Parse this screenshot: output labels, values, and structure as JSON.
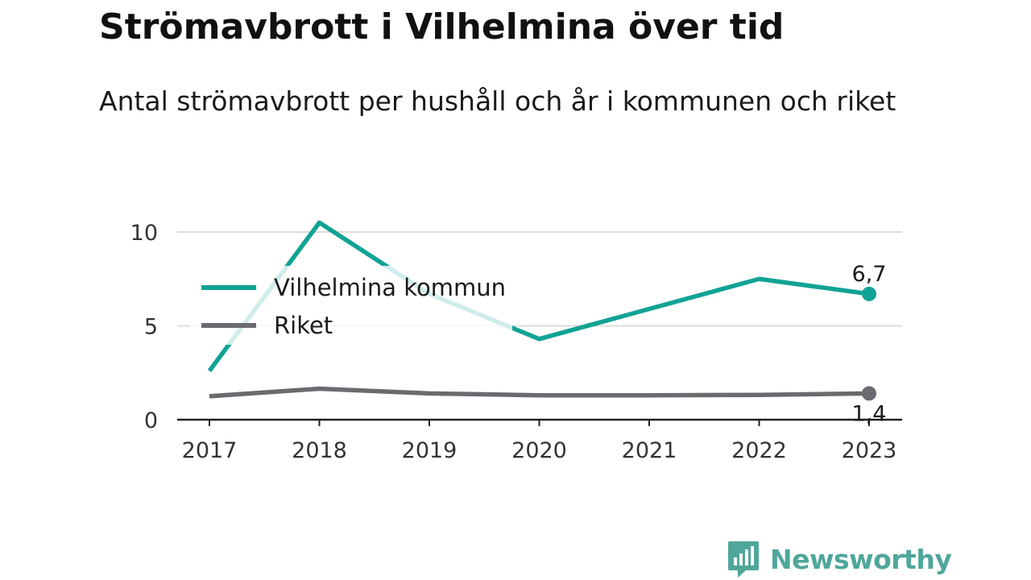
{
  "title": "Strömavbrott i Vilhelmina över tid",
  "subtitle": "Antal strömavbrott per hushåll och år i kommunen och riket",
  "brand": {
    "name": "Newsworthy",
    "color": "#4fa79a"
  },
  "chart_data": {
    "type": "line",
    "title": "Strömavbrott i Vilhelmina över tid",
    "subtitle": "Antal strömavbrott per hushåll och år i kommunen och riket",
    "categories": [
      "2017",
      "2018",
      "2019",
      "2020",
      "2021",
      "2022",
      "2023"
    ],
    "y_ticks": [
      "0",
      "5",
      "10"
    ],
    "ylim": [
      0,
      10.8
    ],
    "grid": true,
    "legend_position": "top-left",
    "series": [
      {
        "name": "Vilhelmina kommun",
        "color": "#10a394",
        "values": [
          2.6,
          10.5,
          6.7,
          4.3,
          5.9,
          7.5,
          6.7
        ],
        "end_label": "6,7"
      },
      {
        "name": "Riket",
        "color": "#6b6a70",
        "values": [
          1.25,
          1.65,
          1.4,
          1.3,
          1.3,
          1.32,
          1.4
        ],
        "end_label": "1,4"
      }
    ]
  }
}
